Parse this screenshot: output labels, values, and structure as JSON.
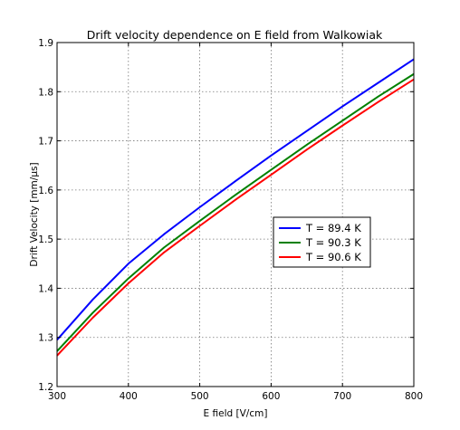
{
  "chart_data": {
    "type": "line",
    "title": "Drift velocity dependence on E field from Walkowiak",
    "xlabel": "E field [V/cm]",
    "ylabel": "Drift Velocity [mm/µs]",
    "xlim": [
      300,
      800
    ],
    "ylim": [
      1.2,
      1.9
    ],
    "xticks": [
      300,
      400,
      500,
      600,
      700,
      800
    ],
    "yticks": [
      1.2,
      1.3,
      1.4,
      1.5,
      1.6,
      1.7,
      1.8,
      1.9
    ],
    "xtick_labels": [
      "300",
      "400",
      "500",
      "600",
      "700",
      "800"
    ],
    "ytick_labels": [
      "1.2",
      "1.3",
      "1.4",
      "1.5",
      "1.6",
      "1.7",
      "1.8",
      "1.9"
    ],
    "grid": true,
    "legend_position": "center-right",
    "x": [
      300,
      350,
      400,
      450,
      500,
      550,
      600,
      650,
      700,
      750,
      800
    ],
    "series": [
      {
        "name": "T = 89.4 K",
        "color": "#0000ff",
        "values": [
          1.295,
          1.377,
          1.45,
          1.51,
          1.565,
          1.618,
          1.67,
          1.72,
          1.77,
          1.818,
          1.866
        ]
      },
      {
        "name": "T = 90.3 K",
        "color": "#008000",
        "values": [
          1.272,
          1.35,
          1.42,
          1.483,
          1.537,
          1.59,
          1.641,
          1.692,
          1.741,
          1.79,
          1.836
        ]
      },
      {
        "name": "T = 90.6 K",
        "color": "#ff0000",
        "values": [
          1.263,
          1.34,
          1.41,
          1.473,
          1.527,
          1.58,
          1.631,
          1.682,
          1.731,
          1.779,
          1.825
        ]
      }
    ]
  }
}
